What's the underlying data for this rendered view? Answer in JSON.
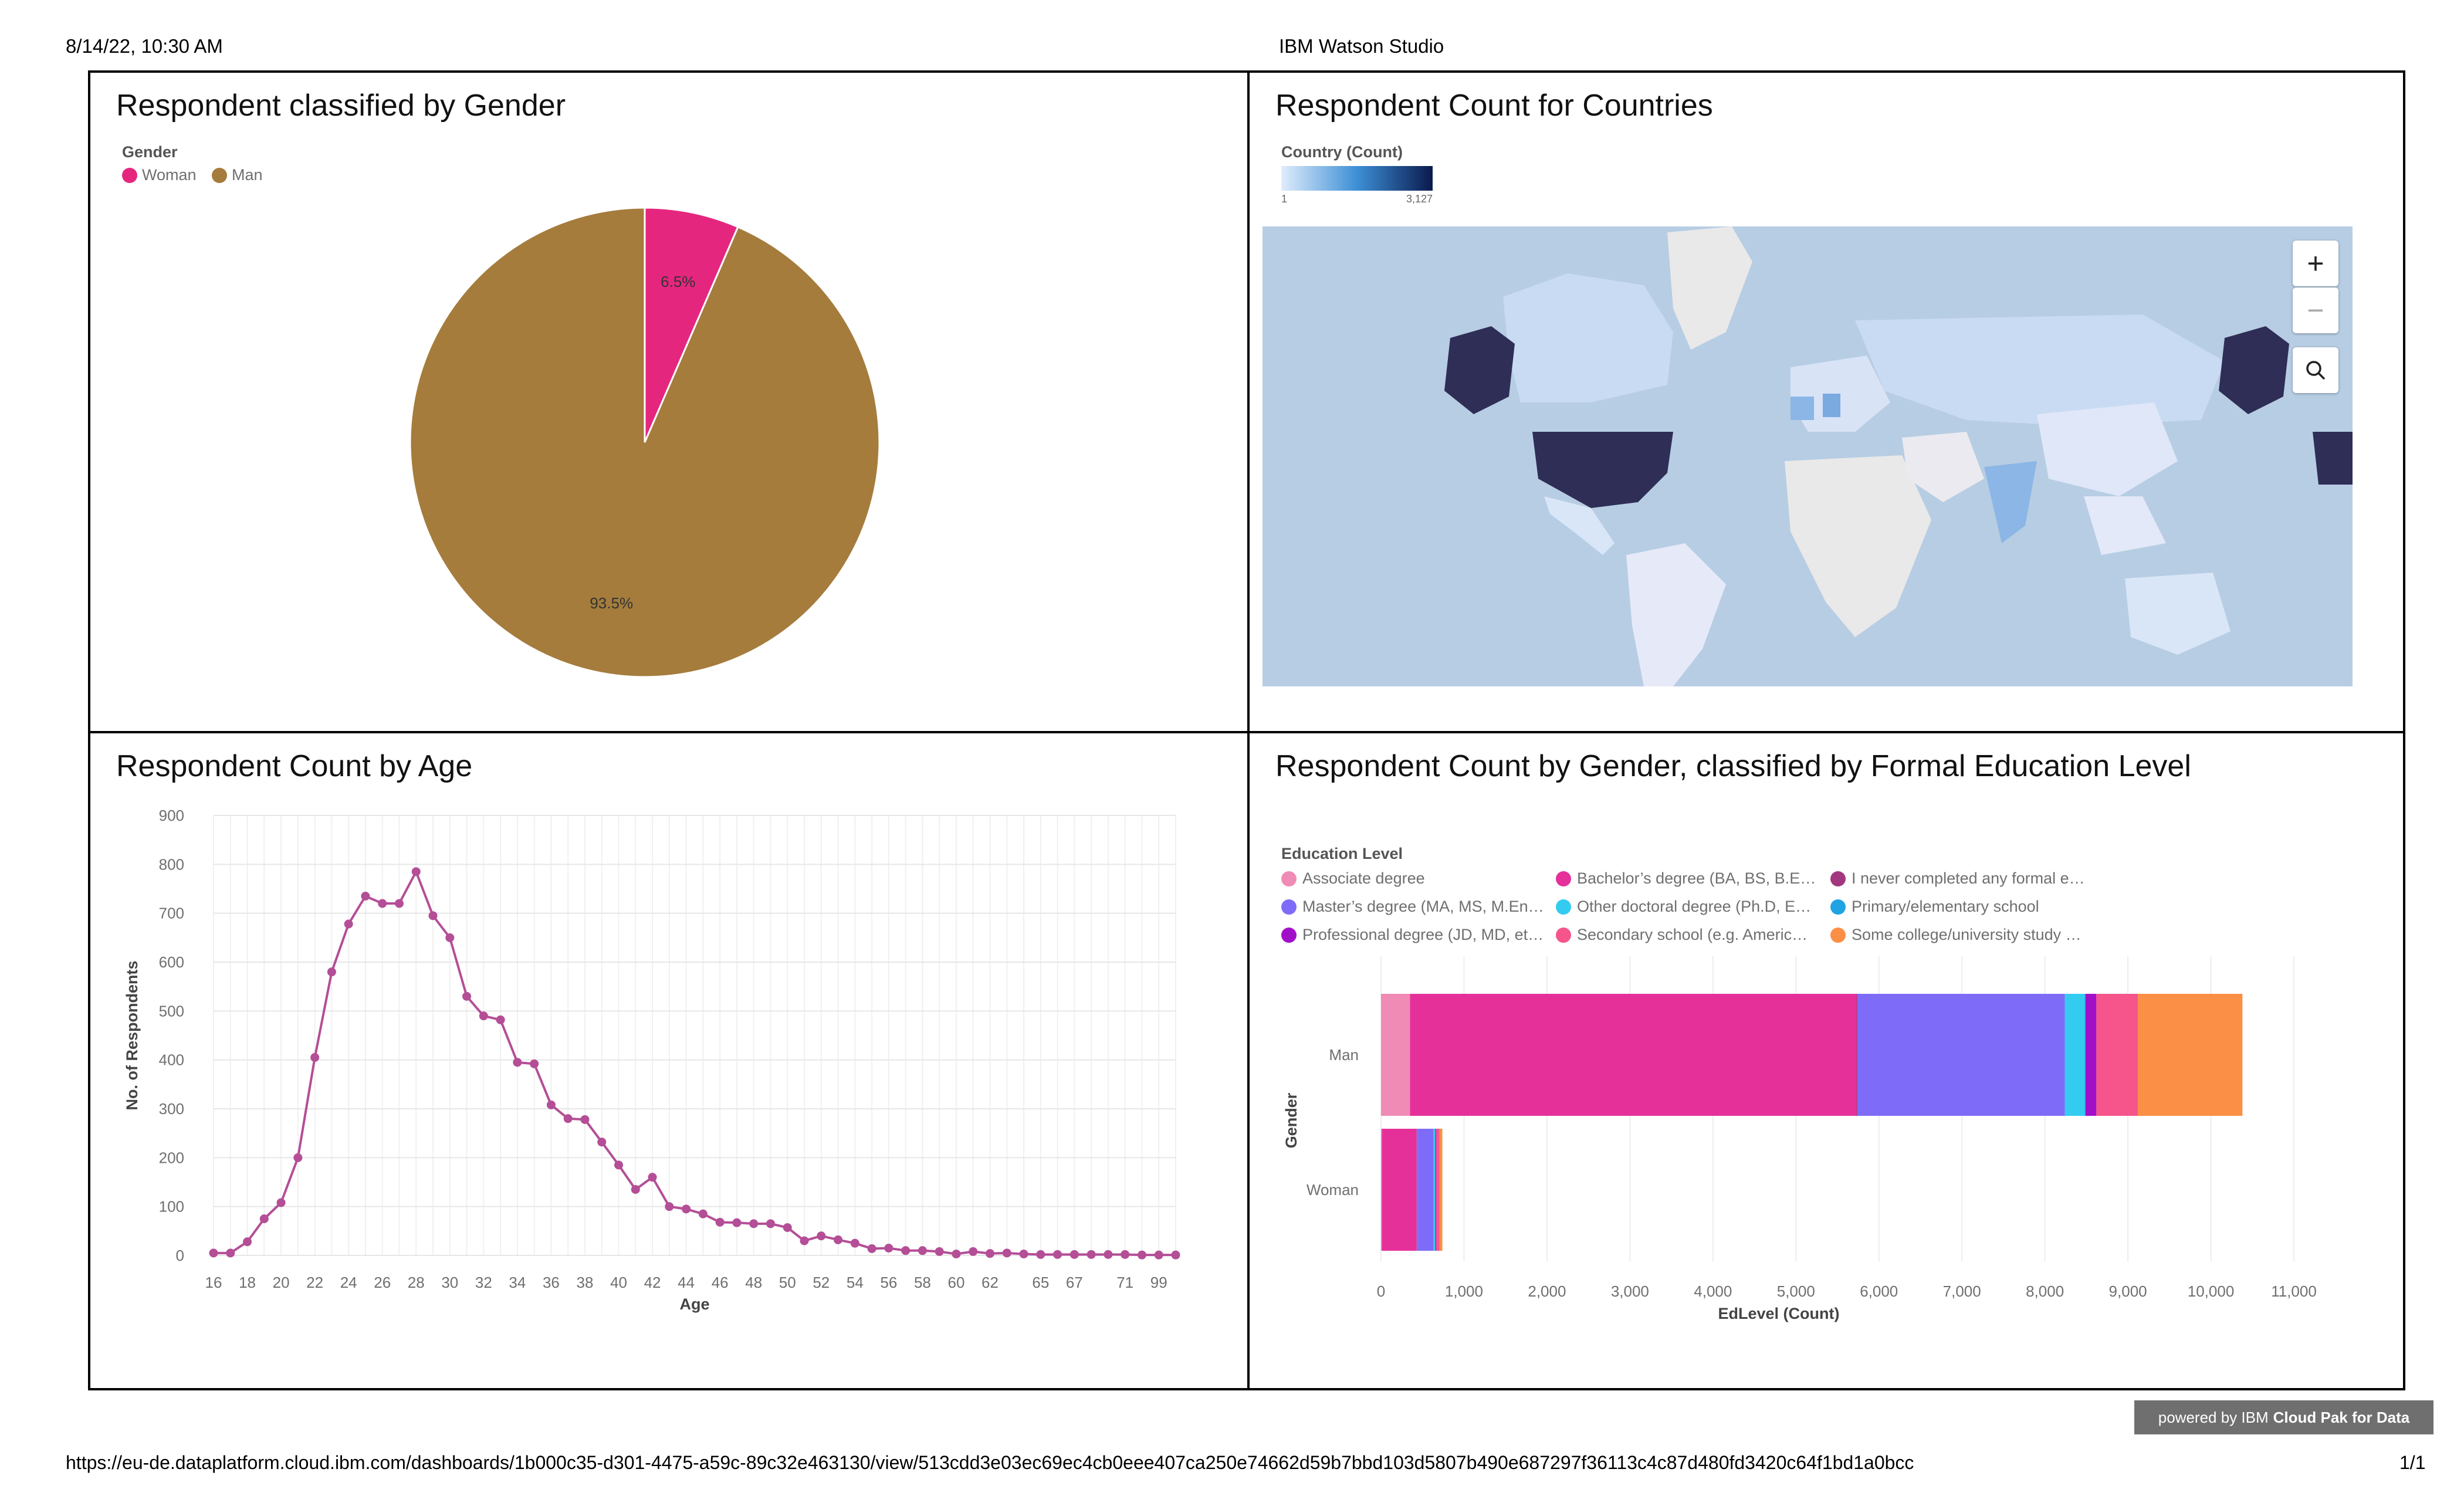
{
  "header": {
    "datetime": "8/14/22, 10:30 AM",
    "title": "IBM Watson Studio"
  },
  "footer": {
    "url": "https://eu-de.dataplatform.cloud.ibm.com/dashboards/1b000c35-d301-4475-a59c-89c32e463130/view/513cdd3e03ec69ec4cb0eee407ca250e74662d59b7bbd103d5807b490e687297f36113c4c87d480fd3420c64f1bd1a0bcc",
    "page": "1/1",
    "badge_prefix": "powered by IBM",
    "badge_product": "Cloud Pak for Data"
  },
  "panels": {
    "gender": {
      "title": "Respondent classified by Gender",
      "legend_title": "Gender",
      "legend": [
        {
          "label": "Woman",
          "color": "#e5267f"
        },
        {
          "label": "Man",
          "color": "#a57c3c"
        }
      ]
    },
    "countries": {
      "title": "Respondent Count for Countries",
      "legend_title": "Country (Count)",
      "scale_min": "1",
      "scale_max": "3,127",
      "zoom_in": "+",
      "zoom_out": "−"
    },
    "age": {
      "title": "Respondent Count by Age"
    },
    "education": {
      "title": "Respondent Count by Gender, classified by Formal Education Level",
      "legend_title": "Education Level"
    }
  },
  "chart_data": [
    {
      "type": "pie",
      "title": "Respondent classified by Gender",
      "slices": [
        {
          "label": "Woman",
          "value": 6.5,
          "display": "6.5%",
          "color": "#e5267f"
        },
        {
          "label": "Man",
          "value": 93.5,
          "display": "93.5%",
          "color": "#a57c3c"
        }
      ]
    },
    {
      "type": "line",
      "title": "Respondent Count by Age",
      "xlabel": "Age",
      "ylabel": "No. of Respondents",
      "ylim": [
        0,
        900
      ],
      "yticks": [
        0,
        100,
        200,
        300,
        400,
        500,
        600,
        700,
        800,
        900
      ],
      "grid": true,
      "color": "#b44e96",
      "x": [
        "16",
        "17",
        "18",
        "19",
        "20",
        "21",
        "22",
        "23",
        "24",
        "25",
        "26",
        "27",
        "28",
        "29",
        "30",
        "31",
        "32",
        "33",
        "34",
        "35",
        "36",
        "37",
        "38",
        "39",
        "40",
        "41",
        "42",
        "43",
        "44",
        "45",
        "46",
        "47",
        "48",
        "49",
        "50",
        "51",
        "52",
        "53",
        "54",
        "55",
        "56",
        "57",
        "58",
        "59",
        "60",
        "61",
        "62",
        "63",
        "64",
        "65",
        "66",
        "67",
        "68",
        "69",
        "71",
        "72",
        "99",
        "100"
      ],
      "xtick_labels": [
        "16",
        "18",
        "20",
        "22",
        "24",
        "26",
        "28",
        "30",
        "32",
        "34",
        "36",
        "38",
        "40",
        "42",
        "44",
        "46",
        "48",
        "50",
        "52",
        "54",
        "56",
        "58",
        "60",
        "62",
        "65",
        "67",
        "71",
        "99"
      ],
      "values": [
        5,
        5,
        28,
        75,
        108,
        200,
        405,
        580,
        678,
        735,
        720,
        720,
        785,
        695,
        650,
        530,
        490,
        482,
        395,
        392,
        308,
        280,
        278,
        232,
        185,
        135,
        160,
        100,
        95,
        85,
        68,
        67,
        65,
        65,
        57,
        30,
        40,
        32,
        25,
        14,
        15,
        10,
        10,
        8,
        3,
        8,
        4,
        5,
        3,
        2,
        2,
        2,
        2,
        2,
        2,
        1,
        1,
        1
      ]
    },
    {
      "type": "bar",
      "orientation": "horizontal",
      "stacked": true,
      "title": "Respondent Count by Gender, classified by Formal Education Level",
      "xlabel": "EdLevel (Count)",
      "ylabel": "Gender",
      "xlim": [
        0,
        11000
      ],
      "xticks": [
        "0",
        "1,000",
        "2,000",
        "3,000",
        "4,000",
        "5,000",
        "6,000",
        "7,000",
        "8,000",
        "9,000",
        "10,000",
        "11,000"
      ],
      "categories": [
        "Man",
        "Woman"
      ],
      "series": [
        {
          "name": "Associate degree",
          "color": "#f08bb6",
          "values": [
            350,
            10
          ]
        },
        {
          "name": "Bachelor’s degree (BA, BS, B.E…",
          "color": "#e5309a",
          "values": [
            5380,
            420
          ]
        },
        {
          "name": "I never completed any formal e…",
          "color": "#a3377f",
          "values": [
            10,
            2
          ]
        },
        {
          "name": "Master’s degree (MA, MS, M.En…",
          "color": "#7e6cf8",
          "values": [
            2500,
            200
          ]
        },
        {
          "name": "Other doctoral degree (Ph.D, E…",
          "color": "#33ccf0",
          "values": [
            240,
            20
          ]
        },
        {
          "name": "Primary/elementary school",
          "color": "#1fa3e3",
          "values": [
            10,
            2
          ]
        },
        {
          "name": "Professional degree (JD, MD, et…",
          "color": "#a20fc8",
          "values": [
            130,
            10
          ]
        },
        {
          "name": "Secondary school (e.g. Americ…",
          "color": "#f5558a",
          "values": [
            500,
            40
          ]
        },
        {
          "name": "Some college/university study …",
          "color": "#fb8f45",
          "values": [
            1260,
            35
          ]
        }
      ]
    }
  ]
}
